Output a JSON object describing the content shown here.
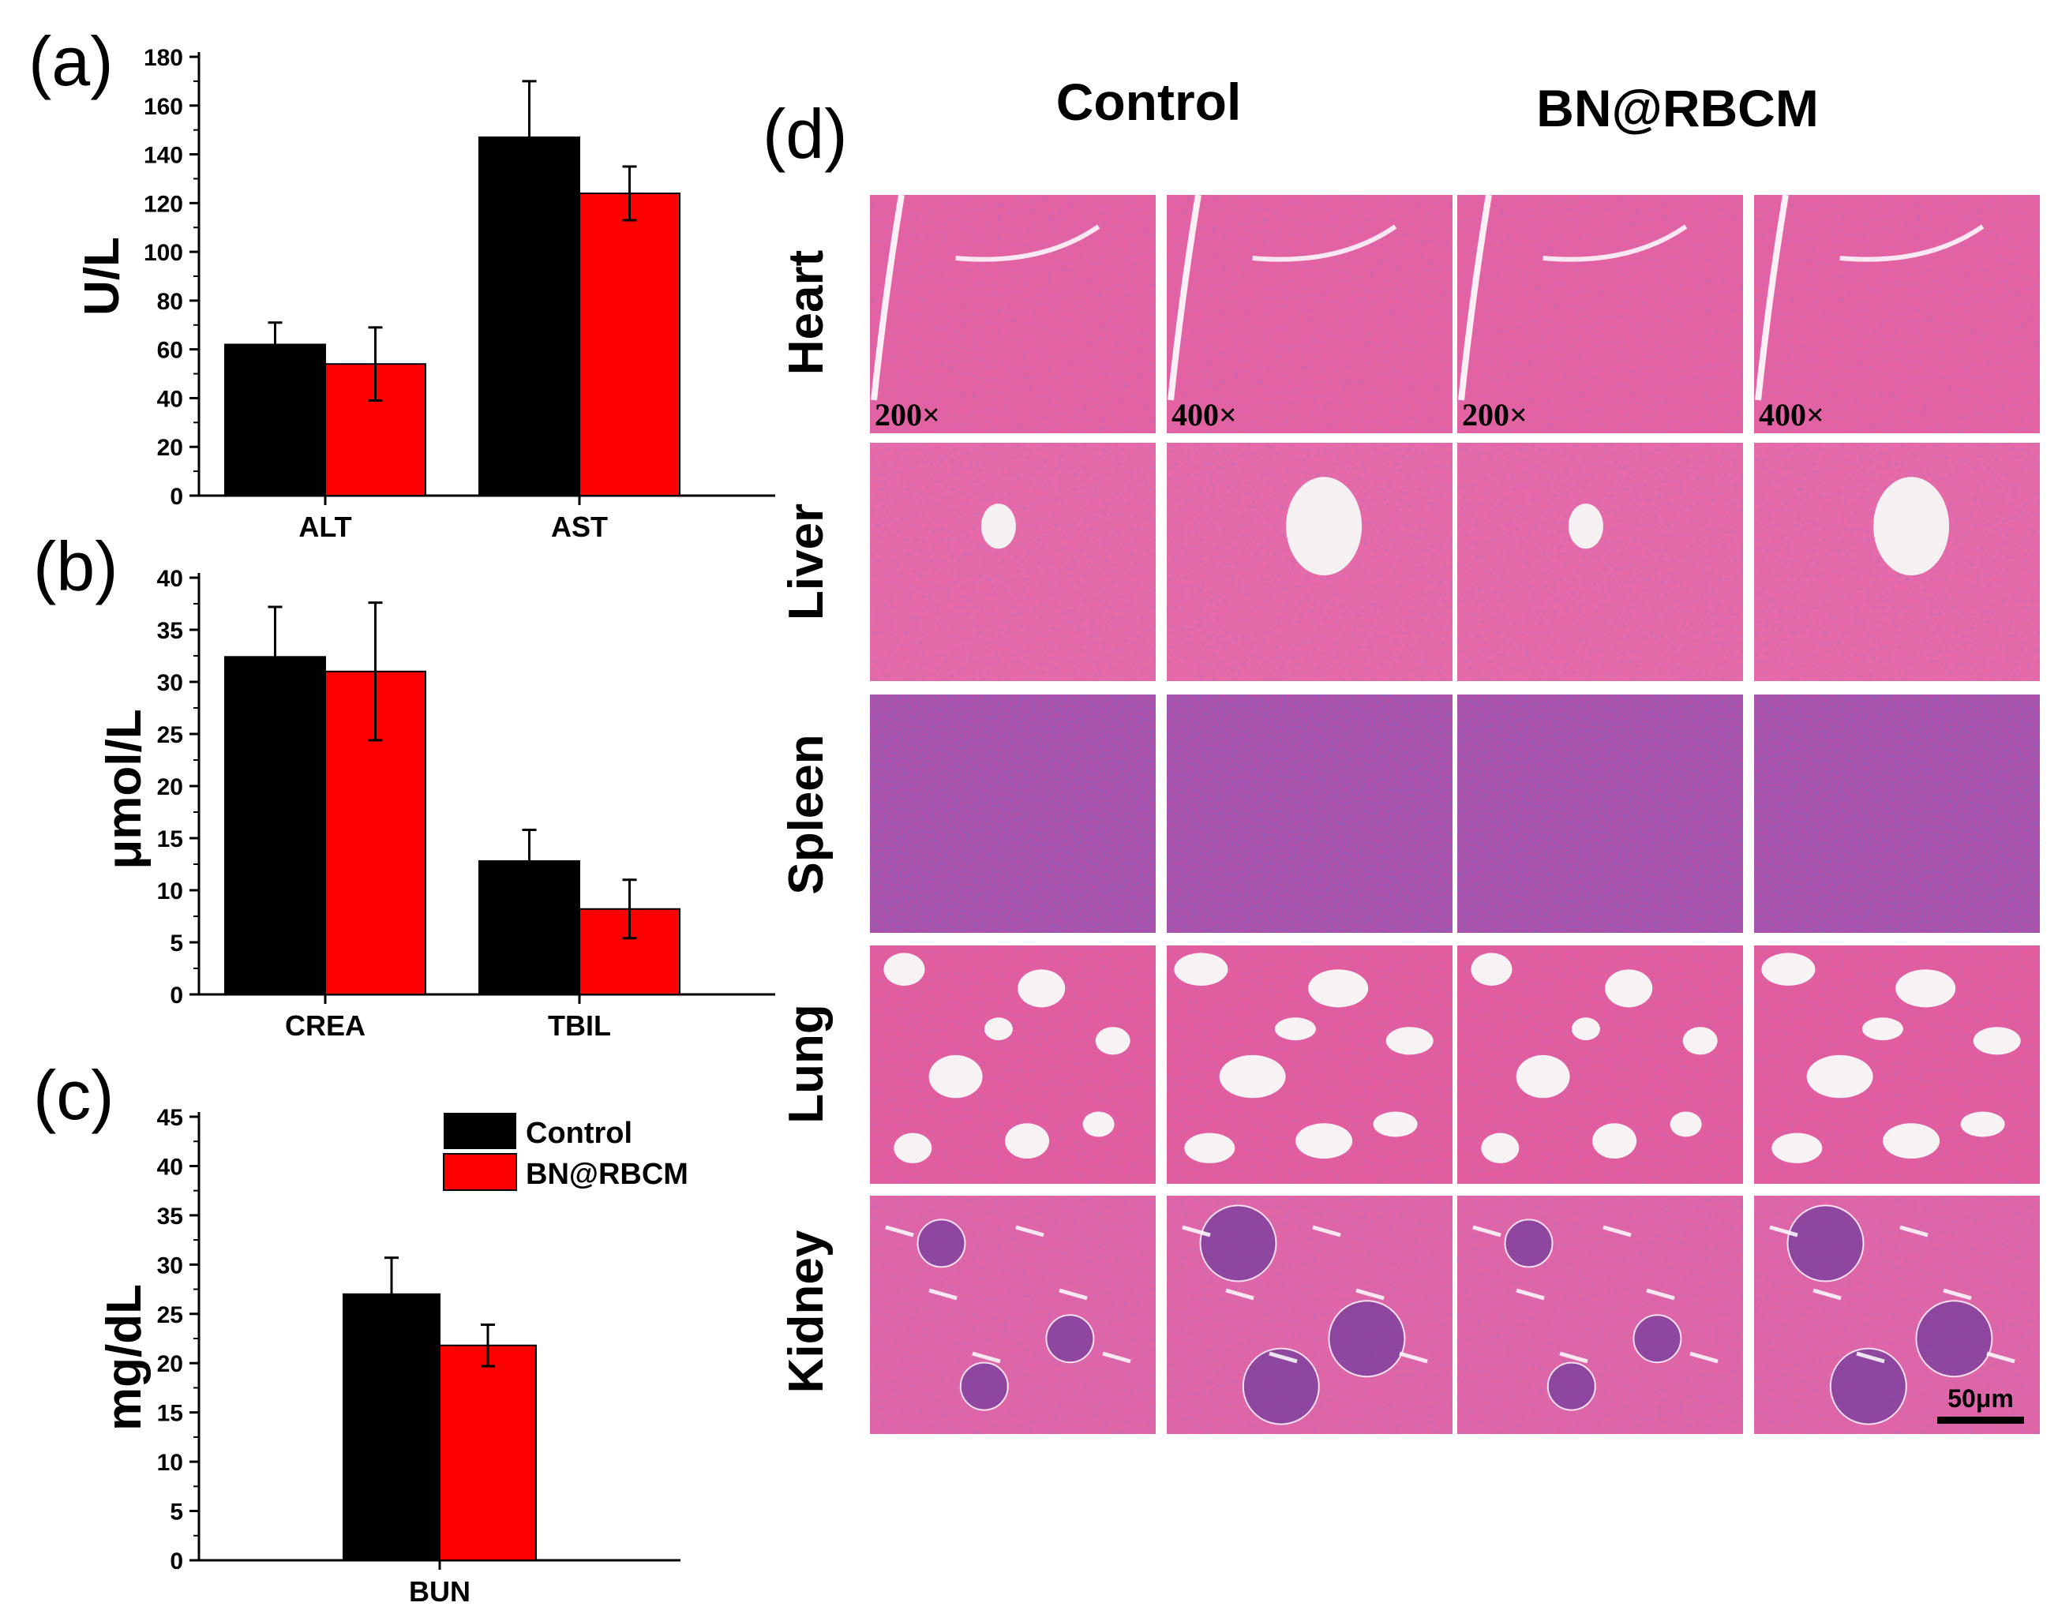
{
  "colors": {
    "control": "#000000",
    "bn_rbcm": "#ff0000",
    "stain": "#e0589a",
    "dense": "#6a3fa8"
  },
  "legend": {
    "items": [
      "Control",
      "BN@RBCM"
    ]
  },
  "chart_data": [
    {
      "panel": "(a)",
      "type": "bar",
      "ylabel": "U/L",
      "ylim": [
        0,
        180
      ],
      "yticks": [
        "0",
        "20",
        "40",
        "60",
        "80",
        "100",
        "120",
        "140",
        "160",
        "180"
      ],
      "categories": [
        "ALT",
        "AST"
      ],
      "series": [
        {
          "name": "Control",
          "values": [
            62,
            147
          ],
          "errors": [
            9,
            23
          ]
        },
        {
          "name": "BN@RBCM",
          "values": [
            54,
            124
          ],
          "errors": [
            15,
            11
          ]
        }
      ]
    },
    {
      "panel": "(b)",
      "type": "bar",
      "ylabel": "μmol/L",
      "ylim": [
        0,
        40
      ],
      "yticks": [
        "0",
        "5",
        "10",
        "15",
        "20",
        "25",
        "30",
        "35",
        "40"
      ],
      "categories": [
        "CREA",
        "TBIL"
      ],
      "series": [
        {
          "name": "Control",
          "values": [
            32.4,
            12.8
          ],
          "errors": [
            4.8,
            3.0
          ]
        },
        {
          "name": "BN@RBCM",
          "values": [
            31.0,
            8.2
          ],
          "errors": [
            6.6,
            2.8
          ]
        }
      ]
    },
    {
      "panel": "(c)",
      "type": "bar",
      "ylabel": "mg/dL",
      "ylim": [
        0,
        45
      ],
      "yticks": [
        "0",
        "5",
        "10",
        "15",
        "20",
        "25",
        "30",
        "35",
        "40",
        "45"
      ],
      "categories": [
        "BUN"
      ],
      "series": [
        {
          "name": "Control",
          "values": [
            27.0
          ],
          "errors": [
            3.7
          ]
        },
        {
          "name": "BN@RBCM",
          "values": [
            21.8
          ],
          "errors": [
            2.1
          ]
        }
      ]
    }
  ],
  "histology": {
    "panel": "(d)",
    "groups": [
      "Control",
      "BN@RBCM"
    ],
    "rows": [
      "Heart",
      "Liver",
      "Spleen",
      "Lung",
      "Kidney"
    ],
    "magnifications": [
      "200×",
      "400×",
      "200×",
      "400×"
    ],
    "scale_bar": "50μm"
  }
}
